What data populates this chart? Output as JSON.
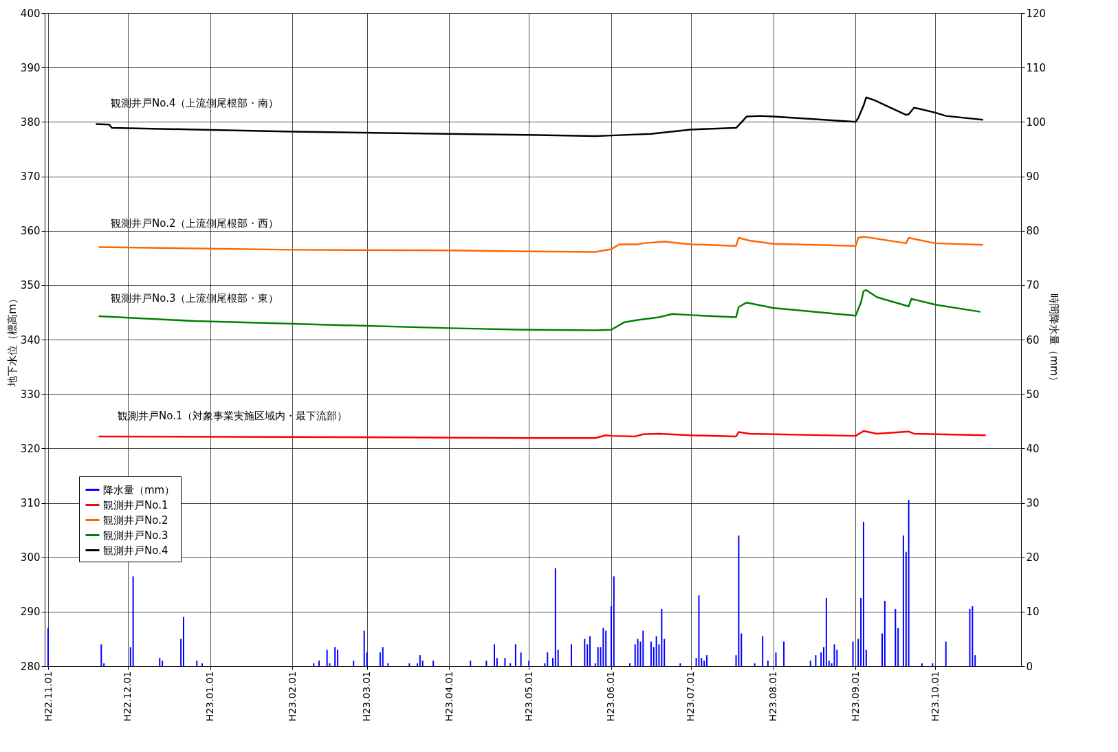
{
  "chart_data": {
    "type": "line",
    "ylabel": "地下水位（標高m）",
    "y2label": "時間降水量（mm）",
    "xlim": [
      "2010-11-01",
      "2011-11-01"
    ],
    "xticks": [
      {
        "value": "2010-11-01",
        "label": "H22.11.01"
      },
      {
        "value": "2010-12-01",
        "label": "H22.12.01"
      },
      {
        "value": "2011-01-01",
        "label": "H23.01.01"
      },
      {
        "value": "2011-02-01",
        "label": "H23.02.01"
      },
      {
        "value": "2011-03-01",
        "label": "H23.03.01"
      },
      {
        "value": "2011-04-01",
        "label": "H23.04.01"
      },
      {
        "value": "2011-05-01",
        "label": "H23.05.01"
      },
      {
        "value": "2011-06-01",
        "label": "H23.06.01"
      },
      {
        "value": "2011-07-01",
        "label": "H23.07.01"
      },
      {
        "value": "2011-08-01",
        "label": "H23.08.01"
      },
      {
        "value": "2011-09-01",
        "label": "H23.09.01"
      },
      {
        "value": "2011-10-01",
        "label": "H23.10.01"
      }
    ],
    "ylim": [
      280,
      400
    ],
    "yticks": [
      280,
      290,
      300,
      310,
      320,
      330,
      340,
      350,
      360,
      370,
      380,
      390,
      400
    ],
    "y2lim": [
      0,
      120
    ],
    "y2ticks": [
      0,
      10,
      20,
      30,
      40,
      50,
      60,
      70,
      80,
      90,
      100,
      110,
      120
    ],
    "grid": true,
    "legend": "left",
    "annotations": [
      "観測井戸No.4（上流側尾根部・南）",
      "観測井戸No.2（上流側尾根部・西）",
      "観測井戸No.3（上流側尾根部・東）",
      "観測井戸No.1（対象事業実施区域内・最下流部）"
    ],
    "series": [
      {
        "name": "降水量（mm）",
        "type": "bar",
        "axis": "y2",
        "color": "#0000ff",
        "x": [
          "2010-11-01",
          "2010-11-21",
          "2010-11-22",
          "2010-12-02",
          "2010-12-03",
          "2010-12-13",
          "2010-12-14",
          "2010-12-21",
          "2010-12-22",
          "2010-12-27",
          "2010-12-29",
          "2011-02-09",
          "2011-02-11",
          "2011-02-14",
          "2011-02-15",
          "2011-02-17",
          "2011-02-18",
          "2011-02-24",
          "2011-02-28",
          "2011-03-01",
          "2011-03-06",
          "2011-03-07",
          "2011-03-09",
          "2011-03-17",
          "2011-03-20",
          "2011-03-21",
          "2011-03-22",
          "2011-03-26",
          "2011-04-09",
          "2011-04-15",
          "2011-04-18",
          "2011-04-19",
          "2011-04-22",
          "2011-04-24",
          "2011-04-26",
          "2011-04-28",
          "2011-05-01",
          "2011-05-07",
          "2011-05-08",
          "2011-05-10",
          "2011-05-11",
          "2011-05-12",
          "2011-05-17",
          "2011-05-22",
          "2011-05-23",
          "2011-05-24",
          "2011-05-26",
          "2011-05-27",
          "2011-05-28",
          "2011-05-29",
          "2011-05-30",
          "2011-06-01",
          "2011-06-02",
          "2011-06-08",
          "2011-06-10",
          "2011-06-11",
          "2011-06-12",
          "2011-06-13",
          "2011-06-16",
          "2011-06-17",
          "2011-06-18",
          "2011-06-19",
          "2011-06-20",
          "2011-06-21",
          "2011-06-27",
          "2011-07-03",
          "2011-07-04",
          "2011-07-05",
          "2011-07-06",
          "2011-07-07",
          "2011-07-18",
          "2011-07-19",
          "2011-07-20",
          "2011-07-25",
          "2011-07-28",
          "2011-07-30",
          "2011-08-02",
          "2011-08-05",
          "2011-08-15",
          "2011-08-17",
          "2011-08-19",
          "2011-08-20",
          "2011-08-21",
          "2011-08-22",
          "2011-08-23",
          "2011-08-24",
          "2011-08-25",
          "2011-08-31",
          "2011-09-02",
          "2011-09-03",
          "2011-09-04",
          "2011-09-05",
          "2011-09-11",
          "2011-09-12",
          "2011-09-16",
          "2011-09-17",
          "2011-09-19",
          "2011-09-20",
          "2011-09-21",
          "2011-09-26",
          "2011-09-30",
          "2011-10-05",
          "2011-10-14",
          "2011-10-15",
          "2011-10-16"
        ],
        "values": [
          7,
          4,
          0.5,
          3.5,
          16.5,
          1.5,
          1,
          5,
          9,
          1,
          0.5,
          0.5,
          1,
          3,
          0.5,
          3.5,
          3,
          1,
          6.5,
          2.5,
          2.5,
          3.5,
          0.5,
          0.5,
          0.5,
          2,
          1,
          1,
          1,
          1,
          4,
          1.5,
          1.5,
          0.5,
          4,
          2.5,
          1,
          0.5,
          2.5,
          1.5,
          18,
          3,
          4,
          5,
          4,
          5.5,
          0.5,
          3.5,
          3.5,
          7,
          6.5,
          11,
          16.5,
          0.5,
          4,
          5,
          4.5,
          6.5,
          4.5,
          3.5,
          5.5,
          4,
          10.5,
          5,
          0.5,
          1.5,
          13,
          1.5,
          1,
          2,
          2,
          24,
          6,
          0.5,
          5.5,
          1,
          2.5,
          4.5,
          1,
          2,
          2.5,
          3.5,
          12.5,
          1,
          0.5,
          4,
          3,
          4.5,
          5,
          12.5,
          26.5,
          3,
          6,
          12,
          10.5,
          7,
          24,
          21,
          30.5,
          0.5,
          0.5,
          4.5,
          10.5,
          11,
          2
        ]
      },
      {
        "name": "観測井戸No.1",
        "color": "#ff0000",
        "x": [
          "2010-11-20",
          "2011-02-01",
          "2011-05-01",
          "2011-05-26",
          "2011-05-30",
          "2011-06-01",
          "2011-06-10",
          "2011-06-13",
          "2011-06-19",
          "2011-07-01",
          "2011-07-18",
          "2011-07-19",
          "2011-07-23",
          "2011-09-01",
          "2011-09-04",
          "2011-09-09",
          "2011-09-21",
          "2011-09-23",
          "2011-10-20"
        ],
        "values": [
          322.2,
          322.1,
          321.9,
          321.9,
          322.4,
          322.3,
          322.2,
          322.6,
          322.7,
          322.4,
          322.2,
          323.0,
          322.7,
          322.3,
          323.2,
          322.7,
          323.1,
          322.7,
          322.4
        ]
      },
      {
        "name": "観測井戸No.2",
        "color": "#ff6600",
        "x": [
          "2010-11-20",
          "2011-02-01",
          "2011-04-01",
          "2011-05-01",
          "2011-05-26",
          "2011-06-01",
          "2011-06-04",
          "2011-06-11",
          "2011-06-13",
          "2011-06-21",
          "2011-07-01",
          "2011-07-18",
          "2011-07-19",
          "2011-07-23",
          "2011-08-01",
          "2011-09-01",
          "2011-09-02",
          "2011-09-04",
          "2011-09-20",
          "2011-09-21",
          "2011-10-01",
          "2011-10-19"
        ],
        "values": [
          357.0,
          356.5,
          356.4,
          356.2,
          356.1,
          356.6,
          357.5,
          357.5,
          357.7,
          358.0,
          357.5,
          357.2,
          358.7,
          358.2,
          357.6,
          357.2,
          358.7,
          358.9,
          357.7,
          358.7,
          357.7,
          357.4
        ]
      },
      {
        "name": "観測井戸No.3",
        "color": "#008000",
        "x": [
          "2010-11-20",
          "2010-12-26",
          "2011-02-01",
          "2011-04-01",
          "2011-05-01",
          "2011-05-26",
          "2011-06-01",
          "2011-06-06",
          "2011-06-11",
          "2011-06-19",
          "2011-06-24",
          "2011-07-01",
          "2011-07-18",
          "2011-07-19",
          "2011-07-22",
          "2011-08-01",
          "2011-09-01",
          "2011-09-03",
          "2011-09-04",
          "2011-09-05",
          "2011-09-09",
          "2011-09-21",
          "2011-09-22",
          "2011-10-01",
          "2011-10-18"
        ],
        "values": [
          344.3,
          343.4,
          342.9,
          342.1,
          341.8,
          341.7,
          341.8,
          343.2,
          343.6,
          344.1,
          344.7,
          344.5,
          344.1,
          346.0,
          346.8,
          345.8,
          344.4,
          346.8,
          348.9,
          349.1,
          347.8,
          346.1,
          347.5,
          346.4,
          345.1
        ]
      },
      {
        "name": "観測井戸No.4",
        "color": "#000000",
        "x": [
          "2010-11-19",
          "2010-11-24",
          "2010-11-25",
          "2010-12-26",
          "2011-02-01",
          "2011-04-01",
          "2011-05-01",
          "2011-05-26",
          "2011-06-01",
          "2011-06-16",
          "2011-07-01",
          "2011-07-18",
          "2011-07-20",
          "2011-07-22",
          "2011-07-27",
          "2011-08-01",
          "2011-09-01",
          "2011-09-02",
          "2011-09-04",
          "2011-09-05",
          "2011-09-08",
          "2011-09-20",
          "2011-09-21",
          "2011-09-23",
          "2011-09-25",
          "2011-10-01",
          "2011-10-05",
          "2011-10-19"
        ],
        "values": [
          379.6,
          379.5,
          378.9,
          378.6,
          378.2,
          377.8,
          377.6,
          377.4,
          377.5,
          377.8,
          378.6,
          378.9,
          379.9,
          381.0,
          381.1,
          381.0,
          380.0,
          380.7,
          383.0,
          384.5,
          384.0,
          381.3,
          381.4,
          382.6,
          382.4,
          381.7,
          381.1,
          380.4
        ]
      }
    ]
  }
}
